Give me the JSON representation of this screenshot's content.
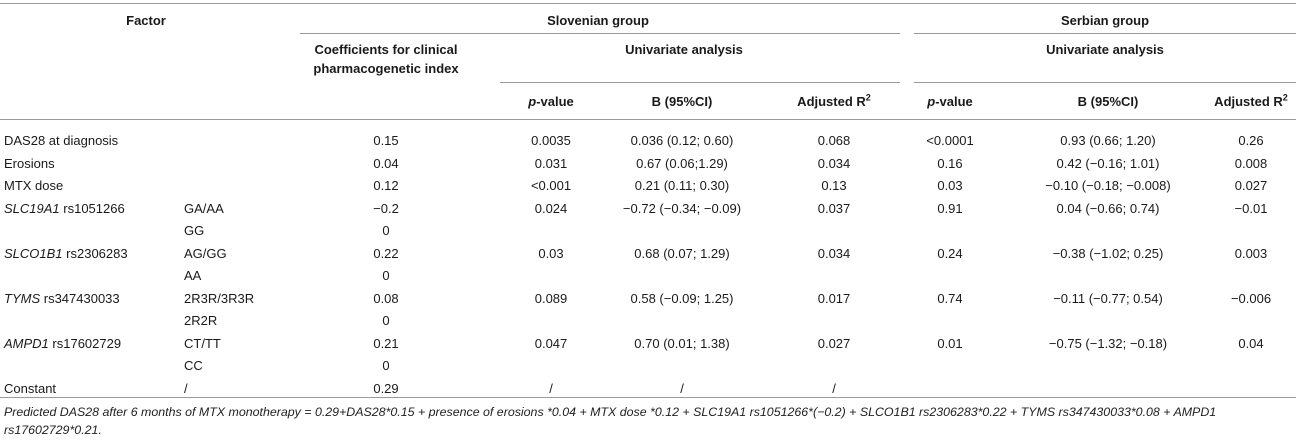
{
  "headers": {
    "factor": "Factor",
    "slovenian_group": "Slovenian group",
    "serbian_group": "Serbian group",
    "coeff_line1": "Coefficients for clinical",
    "coeff_line2": "pharmacogenetic index",
    "univariate_slo": "Univariate analysis",
    "univariate_srb": "Univariate analysis",
    "p_value_p": "p",
    "p_value_rest": "-value",
    "b_ci": "B (95%CI)",
    "adj_r2_text": "Adjusted R",
    "adj_r2_sup": "2"
  },
  "rows": [
    {
      "factor": "DAS28 at diagnosis",
      "factor_gene": "",
      "factor_rest": "",
      "genotype": "",
      "coeff": "0.15",
      "slo_p": "0.0035",
      "slo_b": "0.036 (0.12; 0.60)",
      "slo_r2": "0.068",
      "srb_p": "<0.0001",
      "srb_b": "0.93 (0.66; 1.20)",
      "srb_r2": "0.26"
    },
    {
      "factor": "Erosions",
      "factor_gene": "",
      "factor_rest": "",
      "genotype": "",
      "coeff": "0.04",
      "slo_p": "0.031",
      "slo_b": "0.67 (0.06;1.29)",
      "slo_r2": "0.034",
      "srb_p": "0.16",
      "srb_b": "0.42 (−0.16; 1.01)",
      "srb_r2": "0.008"
    },
    {
      "factor": "MTX dose",
      "factor_gene": "",
      "factor_rest": "",
      "genotype": "",
      "coeff": "0.12",
      "slo_p": "<0.001",
      "slo_b": "0.21 (0.11; 0.30)",
      "slo_r2": "0.13",
      "srb_p": "0.03",
      "srb_b": "−0.10 (−0.18; −0.008)",
      "srb_r2": "0.027"
    },
    {
      "factor": "",
      "factor_gene": "SLC19A1",
      "factor_rest": " rs1051266",
      "genotype": "GA/AA",
      "coeff": "−0.2",
      "slo_p": "0.024",
      "slo_b": "−0.72 (−0.34; −0.09)",
      "slo_r2": "0.037",
      "srb_p": "0.91",
      "srb_b": "0.04 (−0.66; 0.74)",
      "srb_r2": "−0.01"
    },
    {
      "factor": "",
      "factor_gene": "",
      "factor_rest": "",
      "genotype": "GG",
      "coeff": "0",
      "slo_p": "",
      "slo_b": "",
      "slo_r2": "",
      "srb_p": "",
      "srb_b": "",
      "srb_r2": ""
    },
    {
      "factor": "",
      "factor_gene": "SLCO1B1",
      "factor_rest": " rs2306283",
      "genotype": "AG/GG",
      "coeff": "0.22",
      "slo_p": "0.03",
      "slo_b": "0.68 (0.07; 1.29)",
      "slo_r2": "0.034",
      "srb_p": "0.24",
      "srb_b": "−0.38 (−1.02; 0.25)",
      "srb_r2": "0.003"
    },
    {
      "factor": "",
      "factor_gene": "",
      "factor_rest": "",
      "genotype": "AA",
      "coeff": "0",
      "slo_p": "",
      "slo_b": "",
      "slo_r2": "",
      "srb_p": "",
      "srb_b": "",
      "srb_r2": ""
    },
    {
      "factor": "",
      "factor_gene": "TYMS",
      "factor_rest": " rs347430033",
      "genotype": "2R3R/3R3R",
      "coeff": "0.08",
      "slo_p": "0.089",
      "slo_b": "0.58 (−0.09; 1.25)",
      "slo_r2": "0.017",
      "srb_p": "0.74",
      "srb_b": "−0.11 (−0.77; 0.54)",
      "srb_r2": "−0.006"
    },
    {
      "factor": "",
      "factor_gene": "",
      "factor_rest": "",
      "genotype": "2R2R",
      "coeff": "0",
      "slo_p": "",
      "slo_b": "",
      "slo_r2": "",
      "srb_p": "",
      "srb_b": "",
      "srb_r2": ""
    },
    {
      "factor": "",
      "factor_gene": "AMPD1",
      "factor_rest": " rs17602729",
      "genotype": "CT/TT",
      "coeff": "0.21",
      "slo_p": "0.047",
      "slo_b": "0.70 (0.01; 1.38)",
      "slo_r2": "0.027",
      "srb_p": "0.01",
      "srb_b": "−0.75 (−1.32; −0.18)",
      "srb_r2": "0.04"
    },
    {
      "factor": "",
      "factor_gene": "",
      "factor_rest": "",
      "genotype": "CC",
      "coeff": "0",
      "slo_p": "",
      "slo_b": "",
      "slo_r2": "",
      "srb_p": "",
      "srb_b": "",
      "srb_r2": ""
    },
    {
      "factor": "Constant",
      "factor_gene": "",
      "factor_rest": "",
      "genotype": "/",
      "coeff": "0.29",
      "slo_p": "/",
      "slo_b": "/",
      "slo_r2": "/",
      "srb_p": "",
      "srb_b": "",
      "srb_r2": ""
    }
  ],
  "footnote": "Predicted DAS28 after 6 months of MTX monotherapy = 0.29+DAS28*0.15 + presence of erosions *0.04 + MTX dose *0.12 + SLC19A1 rs1051266*(−0.2) + SLCO1B1 rs2306283*0.22 + TYMS rs347430033*0.08 + AMPD1 rs17602729*0.21."
}
